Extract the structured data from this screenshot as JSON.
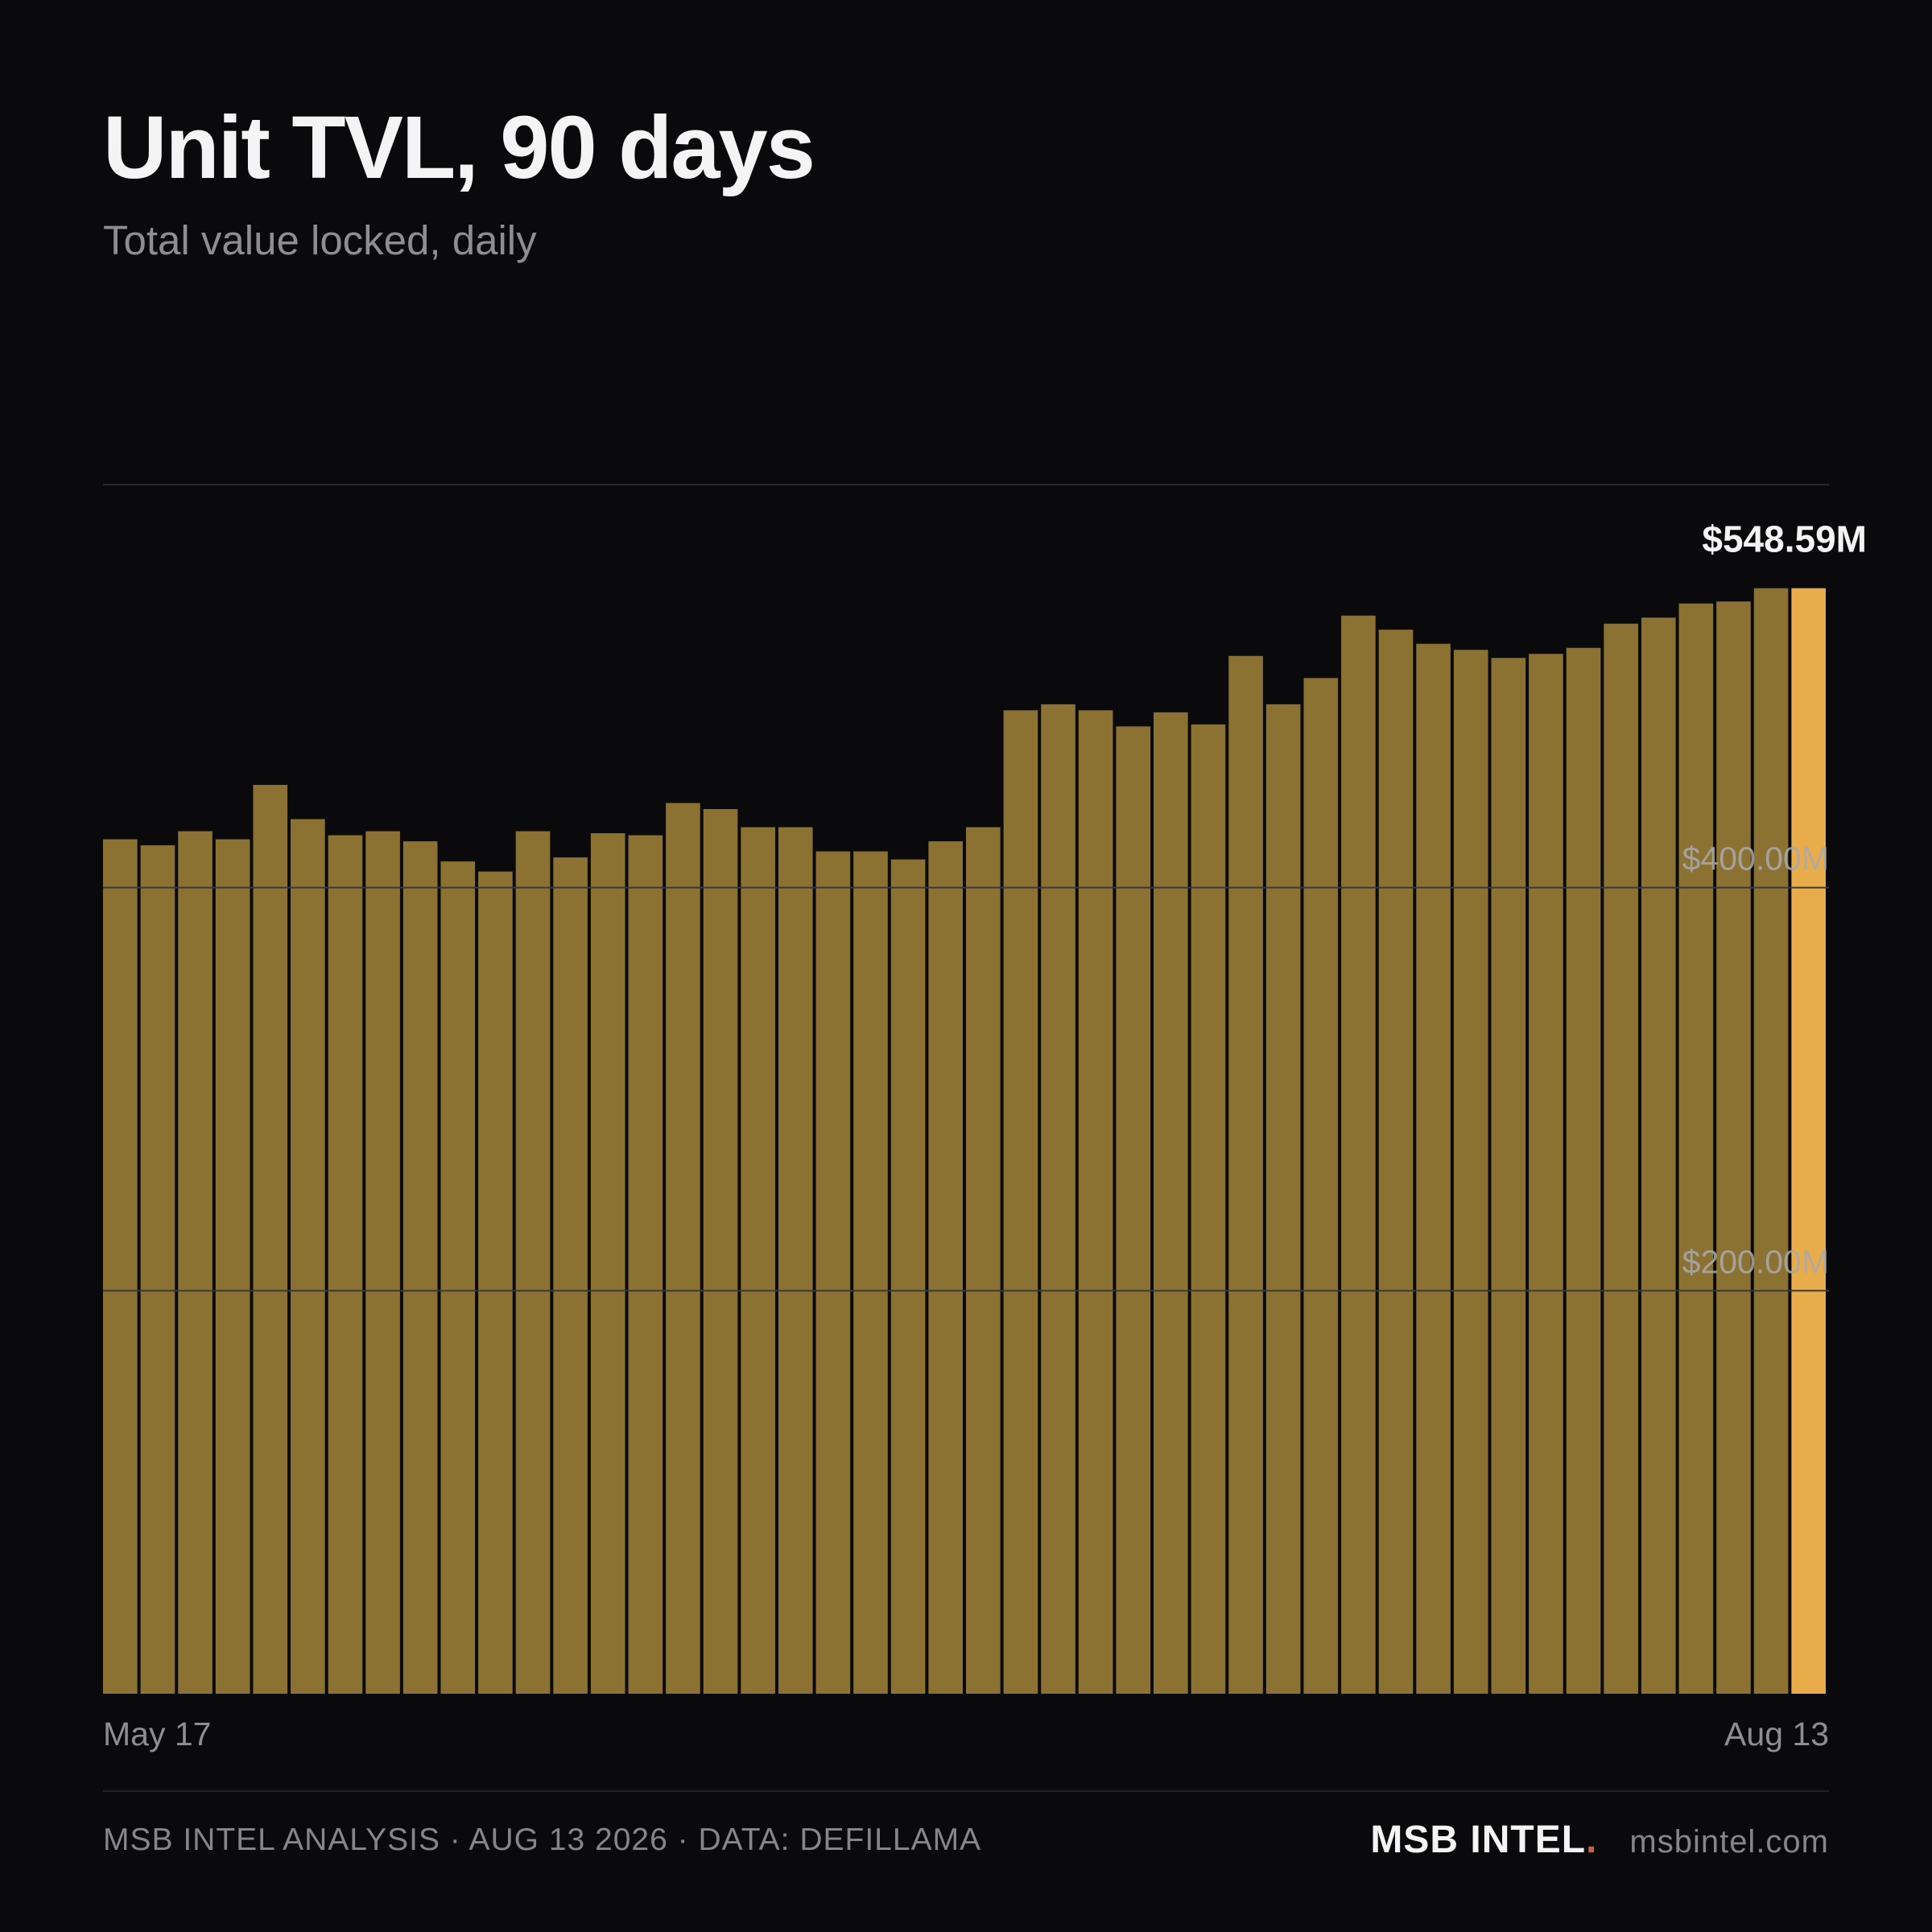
{
  "header": {
    "title": "Unit TVL, 90 days",
    "subtitle": "Total value locked, daily"
  },
  "chart_data": {
    "type": "bar",
    "title": "Unit TVL, 90 days",
    "subtitle": "Total value locked, daily",
    "xlabel": "",
    "ylabel": "",
    "x_tick_labels": [
      "May 17",
      "Aug 13"
    ],
    "y_tick_labels": [
      "$200.00M",
      "$400.00M"
    ],
    "y_ticks": [
      200,
      400
    ],
    "ylim": [
      0,
      600
    ],
    "unit": "$M",
    "grid": true,
    "highlight_index": 45,
    "highlight_label": "$548.59M",
    "colors": {
      "bar": "#8b7233",
      "highlight": "#e8ad4a",
      "grid": "#3a3a3e",
      "background": "#0a0a0c"
    },
    "values": [
      424,
      421,
      428,
      424,
      451,
      434,
      426,
      428,
      423,
      413,
      408,
      428,
      415,
      427,
      426,
      442,
      439,
      430,
      430,
      418,
      418,
      414,
      423,
      430,
      488,
      491,
      488,
      480,
      487,
      481,
      515,
      491,
      504,
      535,
      528,
      521,
      518,
      514,
      516,
      519,
      531,
      534,
      541,
      542,
      548.59,
      548.59
    ]
  },
  "footer": {
    "left": "MSB INTEL ANALYSIS · AUG 13 2026 · DATA: DEFILLAMA",
    "brand": "MSB INTEL",
    "brand_dot": ".",
    "url": "msbintel.com"
  }
}
